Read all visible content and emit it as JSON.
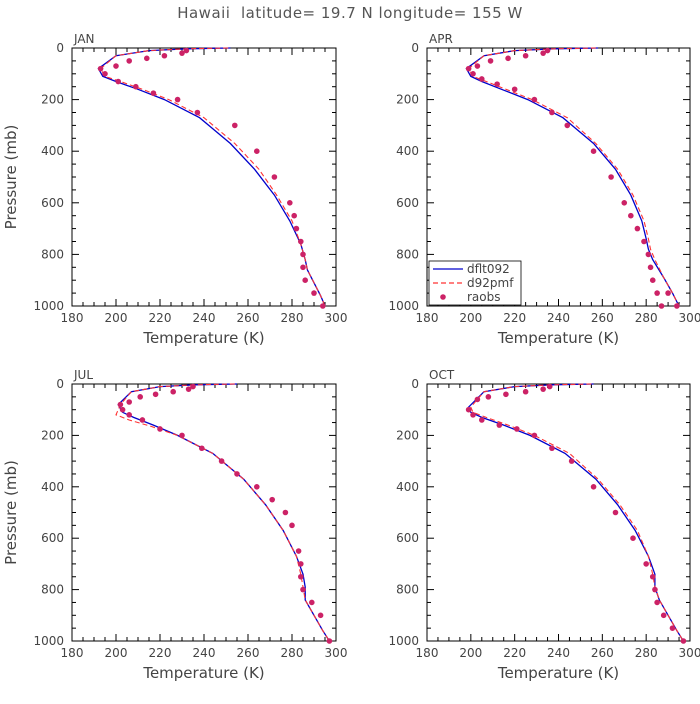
{
  "title": "Hawaii  latitude= 19.7 N longitude= 155 W",
  "colors": {
    "dflt": "#0000cc",
    "d92": "#ff3333",
    "raobs": "#cc2266",
    "axis": "#000000",
    "text": "#444444"
  },
  "chart_data": [
    {
      "type": "line",
      "panel": "JAN",
      "xlabel": "Temperature (K)",
      "ylabel": "Pressure (mb)",
      "xlim": [
        180,
        300
      ],
      "ylim": [
        0,
        1000
      ],
      "y_inverted": true,
      "xticks": [
        180,
        200,
        220,
        240,
        260,
        280,
        300
      ],
      "yticks": [
        0,
        200,
        400,
        600,
        800,
        1000
      ],
      "series": [
        {
          "name": "dflt092",
          "style": "solid",
          "x": [
            252,
            232,
            215,
            200,
            192,
            194,
            200,
            210,
            222,
            238,
            252,
            263,
            272,
            279,
            284,
            286,
            287,
            290,
            293,
            295
          ],
          "y": [
            0,
            3,
            10,
            30,
            80,
            110,
            130,
            160,
            200,
            270,
            370,
            470,
            570,
            670,
            760,
            820,
            860,
            910,
            960,
            1000
          ]
        },
        {
          "name": "d92pmf",
          "style": "dashed",
          "x": [
            251,
            232,
            215,
            200,
            193,
            195,
            202,
            212,
            224,
            240,
            254,
            265,
            273,
            280,
            284,
            286,
            287,
            290,
            293,
            295
          ],
          "y": [
            0,
            3,
            10,
            30,
            80,
            110,
            130,
            160,
            200,
            270,
            370,
            470,
            570,
            670,
            760,
            820,
            860,
            910,
            960,
            1000
          ]
        },
        {
          "name": "raobs",
          "style": "markers",
          "x": [
            232,
            230,
            222,
            214,
            206,
            200,
            193,
            195,
            201,
            209,
            217,
            228,
            237,
            254,
            264,
            272,
            279,
            281,
            282,
            284,
            285,
            285,
            286,
            290,
            294
          ],
          "y": [
            10,
            20,
            30,
            40,
            50,
            70,
            80,
            100,
            130,
            150,
            175,
            200,
            250,
            300,
            400,
            500,
            600,
            650,
            700,
            750,
            800,
            850,
            900,
            950,
            1000
          ]
        }
      ]
    },
    {
      "type": "line",
      "panel": "APR",
      "xlabel": "Temperature (K)",
      "ylabel": "",
      "xlim": [
        180,
        300
      ],
      "ylim": [
        0,
        1000
      ],
      "y_inverted": true,
      "xticks": [
        180,
        200,
        220,
        240,
        260,
        280,
        300
      ],
      "yticks": [
        0,
        200,
        400,
        600,
        800,
        1000
      ],
      "legend": {
        "entries": [
          "dflt092",
          "d92pmf",
          "raobs"
        ],
        "position": "lower-left"
      },
      "series": [
        {
          "name": "dflt092",
          "style": "solid",
          "x": [
            258,
            238,
            220,
            206,
            198,
            200,
            205,
            214,
            226,
            242,
            256,
            266,
            273,
            278,
            280,
            281,
            283,
            288,
            292,
            295
          ],
          "y": [
            0,
            3,
            10,
            30,
            80,
            110,
            130,
            160,
            200,
            270,
            370,
            470,
            570,
            670,
            740,
            780,
            820,
            890,
            950,
            1000
          ]
        },
        {
          "name": "d92pmf",
          "style": "dashed",
          "x": [
            257,
            238,
            220,
            206,
            199,
            201,
            207,
            216,
            228,
            244,
            257,
            267,
            274,
            279,
            281,
            282,
            284,
            288,
            292,
            295
          ],
          "y": [
            0,
            3,
            10,
            30,
            80,
            110,
            130,
            160,
            200,
            270,
            370,
            470,
            570,
            670,
            740,
            780,
            820,
            890,
            950,
            1000
          ]
        },
        {
          "name": "raobs",
          "style": "markers",
          "x": [
            235,
            233,
            225,
            217,
            209,
            203,
            199,
            201,
            205,
            212,
            220,
            229,
            237,
            244,
            256,
            264,
            270,
            273,
            276,
            279,
            281,
            282,
            283,
            285,
            287,
            290,
            294
          ],
          "y": [
            10,
            20,
            30,
            40,
            50,
            70,
            80,
            100,
            120,
            140,
            160,
            200,
            250,
            300,
            400,
            500,
            600,
            650,
            700,
            750,
            800,
            850,
            900,
            950,
            1000,
            950,
            1000
          ]
        }
      ]
    },
    {
      "type": "line",
      "panel": "JUL",
      "xlabel": "Temperature (K)",
      "ylabel": "Pressure (mb)",
      "xlim": [
        180,
        300
      ],
      "ylim": [
        0,
        1000
      ],
      "y_inverted": true,
      "xticks": [
        180,
        200,
        220,
        240,
        260,
        280,
        300
      ],
      "yticks": [
        0,
        200,
        400,
        600,
        800,
        1000
      ],
      "series": [
        {
          "name": "dflt092",
          "style": "solid",
          "x": [
            255,
            236,
            220,
            207,
            201,
            203,
            208,
            217,
            228,
            244,
            258,
            268,
            276,
            282,
            285,
            286,
            286,
            290,
            294,
            297
          ],
          "y": [
            0,
            3,
            10,
            30,
            80,
            110,
            130,
            160,
            200,
            270,
            370,
            470,
            570,
            670,
            740,
            790,
            840,
            900,
            960,
            1000
          ]
        },
        {
          "name": "d92pmf",
          "style": "dashed",
          "x": [
            254,
            236,
            220,
            207,
            202,
            200,
            206,
            216,
            228,
            244,
            258,
            268,
            276,
            282,
            284,
            285,
            286,
            290,
            294,
            297
          ],
          "y": [
            0,
            3,
            10,
            30,
            80,
            120,
            140,
            165,
            200,
            270,
            370,
            470,
            570,
            670,
            740,
            790,
            840,
            900,
            960,
            1000
          ]
        },
        {
          "name": "raobs",
          "style": "markers",
          "x": [
            235,
            233,
            226,
            218,
            211,
            206,
            202,
            203,
            206,
            212,
            220,
            230,
            239,
            248,
            255,
            264,
            271,
            277,
            280,
            283,
            284,
            284,
            285,
            289,
            293,
            297
          ],
          "y": [
            10,
            20,
            30,
            40,
            50,
            70,
            80,
            100,
            120,
            140,
            175,
            200,
            250,
            300,
            350,
            400,
            450,
            500,
            550,
            650,
            700,
            750,
            800,
            850,
            900,
            1000
          ]
        }
      ]
    },
    {
      "type": "line",
      "panel": "OCT",
      "xlabel": "Temperature (K)",
      "ylabel": "",
      "xlim": [
        180,
        300
      ],
      "ylim": [
        0,
        1000
      ],
      "y_inverted": true,
      "xticks": [
        180,
        200,
        220,
        240,
        260,
        280,
        300
      ],
      "yticks": [
        0,
        200,
        400,
        600,
        800,
        1000
      ],
      "series": [
        {
          "name": "dflt092",
          "style": "solid",
          "x": [
            256,
            237,
            220,
            206,
            199,
            200,
            205,
            215,
            227,
            243,
            257,
            267,
            275,
            281,
            284,
            284,
            286,
            290,
            294,
            297
          ],
          "y": [
            0,
            3,
            10,
            30,
            90,
            110,
            130,
            160,
            200,
            270,
            370,
            470,
            570,
            670,
            740,
            790,
            840,
            900,
            960,
            1000
          ]
        },
        {
          "name": "d92pmf",
          "style": "dashed",
          "x": [
            255,
            237,
            220,
            206,
            200,
            201,
            207,
            217,
            229,
            245,
            258,
            268,
            276,
            281,
            283,
            284,
            286,
            290,
            294,
            297
          ],
          "y": [
            0,
            3,
            10,
            30,
            90,
            110,
            130,
            160,
            200,
            270,
            370,
            470,
            570,
            670,
            740,
            790,
            840,
            900,
            960,
            1000
          ]
        },
        {
          "name": "raobs",
          "style": "markers",
          "x": [
            236,
            233,
            225,
            216,
            208,
            203,
            199,
            201,
            205,
            213,
            221,
            229,
            237,
            246,
            256,
            266,
            274,
            280,
            283,
            284,
            285,
            288,
            292,
            297
          ],
          "y": [
            10,
            20,
            30,
            40,
            50,
            60,
            100,
            120,
            140,
            160,
            175,
            200,
            250,
            300,
            400,
            500,
            600,
            700,
            750,
            800,
            850,
            900,
            950,
            1000
          ]
        }
      ]
    }
  ]
}
